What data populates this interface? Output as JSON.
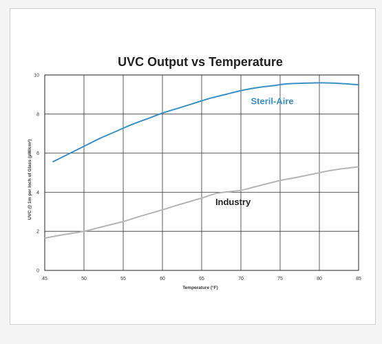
{
  "chart_data": {
    "type": "line",
    "title": "UVC Output vs Temperature",
    "xlabel": "Temperature (°F)",
    "ylabel": "UVC @ 1m per Inch of Glass (µW/cm²)",
    "xlim": [
      45,
      85
    ],
    "ylim": [
      0,
      10
    ],
    "xticks": [
      45,
      50,
      55,
      60,
      65,
      70,
      75,
      80,
      85
    ],
    "yticks": [
      0,
      2,
      4,
      6,
      8,
      10
    ],
    "grid": true,
    "legend": "none",
    "series": [
      {
        "name": "Steril-Aire",
        "color": "#3a8fc4",
        "x": [
          46,
          48,
          50,
          52,
          54,
          56,
          58,
          60,
          62,
          64,
          66,
          68,
          70,
          72,
          74,
          76,
          78,
          80,
          82,
          85
        ],
        "y": [
          5.55,
          5.95,
          6.35,
          6.75,
          7.1,
          7.45,
          7.75,
          8.05,
          8.3,
          8.55,
          8.8,
          9.0,
          9.2,
          9.35,
          9.45,
          9.55,
          9.58,
          9.6,
          9.58,
          9.5
        ]
      },
      {
        "name": "Industry",
        "color": "#b5b5b5",
        "x": [
          45,
          47,
          50,
          52,
          55,
          57,
          60,
          62,
          65,
          67,
          70,
          72,
          75,
          77,
          80,
          82,
          85
        ],
        "y": [
          1.65,
          1.8,
          2.0,
          2.2,
          2.5,
          2.75,
          3.1,
          3.35,
          3.7,
          3.95,
          4.1,
          4.3,
          4.6,
          4.75,
          5.0,
          5.15,
          5.3
        ]
      }
    ]
  }
}
